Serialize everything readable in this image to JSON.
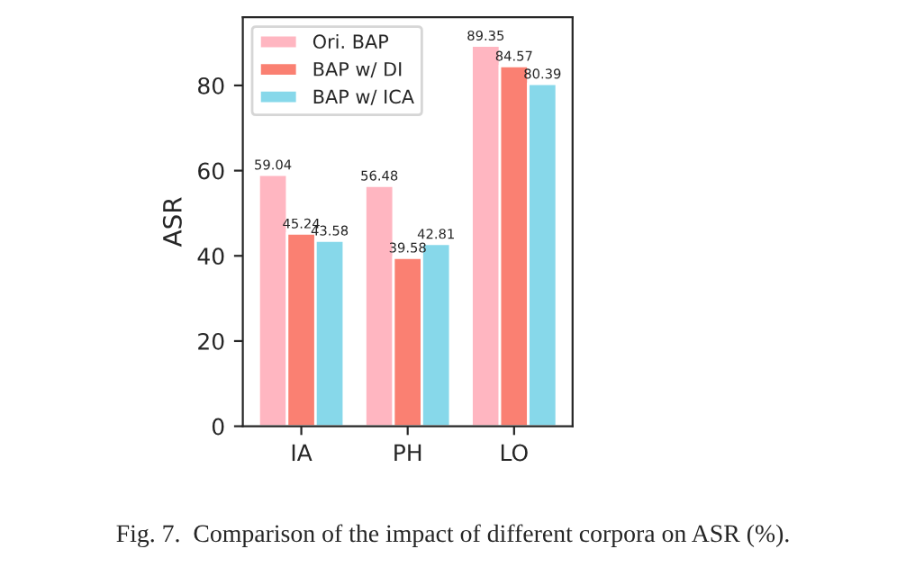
{
  "chart_data": {
    "type": "bar",
    "ylabel": "ASR",
    "categories": [
      "IA",
      "PH",
      "LO"
    ],
    "series": [
      {
        "name": "Ori. BAP",
        "color": "#ffb6c1",
        "values": [
          59.04,
          56.48,
          89.35
        ]
      },
      {
        "name": "BAP w/ DI",
        "color": "#fa8072",
        "values": [
          45.24,
          39.58,
          84.57
        ]
      },
      {
        "name": "BAP w/ ICA",
        "color": "#87d8ea",
        "values": [
          43.58,
          42.81,
          80.39
        ]
      }
    ],
    "ylim": [
      0,
      96
    ],
    "yticks": [
      0,
      20,
      40,
      60,
      80
    ],
    "data_labels": true,
    "legend": "top left",
    "grid": false,
    "annotations": [
      "Fig. 7.  Comparison of the impact of different corpora on ASR (%)."
    ]
  }
}
